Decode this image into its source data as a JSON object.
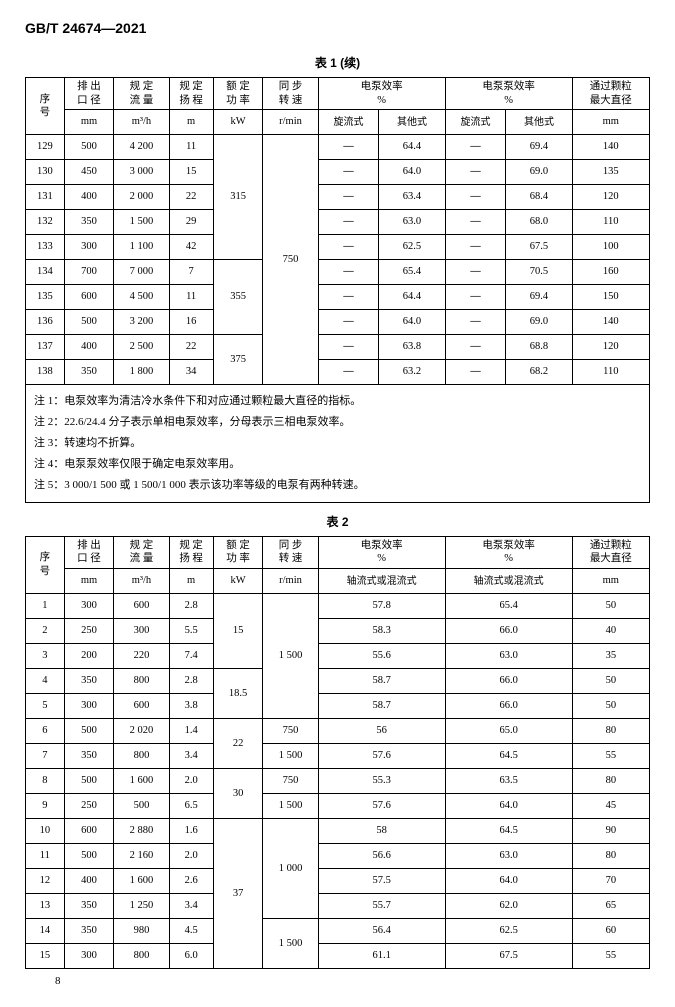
{
  "docId": "GB/T 24674—2021",
  "pageNumber": "8",
  "table1": {
    "title": "表 1 (续)",
    "headers": {
      "seq": "序<br>号",
      "dia": "排 出<br>口 径",
      "diaUnit": "mm",
      "flow": "规 定<br>流 量",
      "flowUnit": "m³/h",
      "head": "规 定<br>扬 程",
      "headUnit": "m",
      "power": "额 定<br>功 率",
      "powerUnit": "kW",
      "speed": "同 步<br>转 速",
      "speedUnit": "r/min",
      "pumpEff": "电泵效率",
      "pumpEffUnit": "%",
      "pumpEffA": "旋流式",
      "pumpEffB": "其他式",
      "unitEff": "电泵泵效率",
      "unitEffUnit": "%",
      "unitEffA": "旋流式",
      "unitEffB": "其他式",
      "particle": "通过颗粒<br>最大直径",
      "particleUnit": "mm"
    },
    "rows": [
      {
        "seq": "129",
        "dia": "500",
        "flow": "4 200",
        "head": "11",
        "power": "315",
        "speed": "",
        "pA": "—",
        "pB": "64.4",
        "uA": "—",
        "uB": "69.4",
        "part": "140",
        "powerSpan": 5
      },
      {
        "seq": "130",
        "dia": "450",
        "flow": "3 000",
        "head": "15",
        "power": "",
        "speed": "",
        "pA": "—",
        "pB": "64.0",
        "uA": "—",
        "uB": "69.0",
        "part": "135"
      },
      {
        "seq": "131",
        "dia": "400",
        "flow": "2 000",
        "head": "22",
        "power": "",
        "speed": "",
        "pA": "—",
        "pB": "63.4",
        "uA": "—",
        "uB": "68.4",
        "part": "120"
      },
      {
        "seq": "132",
        "dia": "350",
        "flow": "1 500",
        "head": "29",
        "power": "",
        "speed": "",
        "pA": "—",
        "pB": "63.0",
        "uA": "—",
        "uB": "68.0",
        "part": "110"
      },
      {
        "seq": "133",
        "dia": "300",
        "flow": "1 100",
        "head": "42",
        "power": "",
        "speed": "750",
        "pA": "—",
        "pB": "62.5",
        "uA": "—",
        "uB": "67.5",
        "part": "100",
        "speedSpan": 6
      },
      {
        "seq": "134",
        "dia": "700",
        "flow": "7 000",
        "head": "7",
        "power": "355",
        "speed": "",
        "pA": "—",
        "pB": "65.4",
        "uA": "—",
        "uB": "70.5",
        "part": "160",
        "powerSpan": 3
      },
      {
        "seq": "135",
        "dia": "600",
        "flow": "4 500",
        "head": "11",
        "power": "",
        "speed": "",
        "pA": "—",
        "pB": "64.4",
        "uA": "—",
        "uB": "69.4",
        "part": "150"
      },
      {
        "seq": "136",
        "dia": "500",
        "flow": "3 200",
        "head": "16",
        "power": "",
        "speed": "",
        "pA": "—",
        "pB": "64.0",
        "uA": "—",
        "uB": "69.0",
        "part": "140"
      },
      {
        "seq": "137",
        "dia": "400",
        "flow": "2 500",
        "head": "22",
        "power": "375",
        "speed": "",
        "pA": "—",
        "pB": "63.8",
        "uA": "—",
        "uB": "68.8",
        "part": "120",
        "powerSpan": 2
      },
      {
        "seq": "138",
        "dia": "350",
        "flow": "1 800",
        "head": "34",
        "power": "",
        "speed": "",
        "pA": "—",
        "pB": "63.2",
        "uA": "—",
        "uB": "68.2",
        "part": "110"
      }
    ],
    "notes": [
      "注 1：电泵效率为清洁冷水条件下和对应通过颗粒最大直径的指标。",
      "注 2：22.6/24.4 分子表示单相电泵效率，分母表示三相电泵效率。",
      "注 3：转速均不折算。",
      "注 4：电泵泵效率仅限于确定电泵效率用。",
      "注 5：3 000/1 500 或 1 500/1 000 表示该功率等级的电泵有两种转速。"
    ]
  },
  "table2": {
    "title": "表 2",
    "headers": {
      "seq": "序<br>号",
      "dia": "排 出<br>口 径",
      "diaUnit": "mm",
      "flow": "规 定<br>流 量",
      "flowUnit": "m³/h",
      "head": "规 定<br>扬 程",
      "headUnit": "m",
      "power": "额 定<br>功 率",
      "powerUnit": "kW",
      "speed": "同 步<br>转 速",
      "speedUnit": "r/min",
      "pumpEff": "电泵效率",
      "pumpEffUnit": "%",
      "pumpEffSub": "轴流式或混流式",
      "unitEff": "电泵泵效率",
      "unitEffUnit": "%",
      "unitEffSub": "轴流式或混流式",
      "particle": "通过颗粒<br>最大直径",
      "particleUnit": "mm"
    },
    "rows": [
      {
        "seq": "1",
        "dia": "300",
        "flow": "600",
        "head": "2.8",
        "power": "15",
        "speed": "1 500",
        "p": "57.8",
        "u": "65.4",
        "part": "50",
        "powerSpan": 3,
        "speedSpan": 5
      },
      {
        "seq": "2",
        "dia": "250",
        "flow": "300",
        "head": "5.5",
        "power": "",
        "speed": "",
        "p": "58.3",
        "u": "66.0",
        "part": "40"
      },
      {
        "seq": "3",
        "dia": "200",
        "flow": "220",
        "head": "7.4",
        "power": "",
        "speed": "",
        "p": "55.6",
        "u": "63.0",
        "part": "35"
      },
      {
        "seq": "4",
        "dia": "350",
        "flow": "800",
        "head": "2.8",
        "power": "18.5",
        "speed": "",
        "p": "58.7",
        "u": "66.0",
        "part": "50",
        "powerSpan": 2
      },
      {
        "seq": "5",
        "dia": "300",
        "flow": "600",
        "head": "3.8",
        "power": "",
        "speed": "",
        "p": "58.7",
        "u": "66.0",
        "part": "50"
      },
      {
        "seq": "6",
        "dia": "500",
        "flow": "2 020",
        "head": "1.4",
        "power": "22",
        "speed": "750",
        "p": "56",
        "u": "65.0",
        "part": "80",
        "powerSpan": 2
      },
      {
        "seq": "7",
        "dia": "350",
        "flow": "800",
        "head": "3.4",
        "power": "",
        "speed": "1 500",
        "p": "57.6",
        "u": "64.5",
        "part": "55"
      },
      {
        "seq": "8",
        "dia": "500",
        "flow": "1 600",
        "head": "2.0",
        "power": "30",
        "speed": "750",
        "p": "55.3",
        "u": "63.5",
        "part": "80",
        "powerSpan": 2
      },
      {
        "seq": "9",
        "dia": "250",
        "flow": "500",
        "head": "6.5",
        "power": "",
        "speed": "1 500",
        "p": "57.6",
        "u": "64.0",
        "part": "45"
      },
      {
        "seq": "10",
        "dia": "600",
        "flow": "2 880",
        "head": "1.6",
        "power": "37",
        "speed": "1 000",
        "p": "58",
        "u": "64.5",
        "part": "90",
        "powerSpan": 6,
        "speedSpan": 4
      },
      {
        "seq": "11",
        "dia": "500",
        "flow": "2 160",
        "head": "2.0",
        "power": "",
        "speed": "",
        "p": "56.6",
        "u": "63.0",
        "part": "80"
      },
      {
        "seq": "12",
        "dia": "400",
        "flow": "1 600",
        "head": "2.6",
        "power": "",
        "speed": "",
        "p": "57.5",
        "u": "64.0",
        "part": "70"
      },
      {
        "seq": "13",
        "dia": "350",
        "flow": "1 250",
        "head": "3.4",
        "power": "",
        "speed": "",
        "p": "55.7",
        "u": "62.0",
        "part": "65"
      },
      {
        "seq": "14",
        "dia": "350",
        "flow": "980",
        "head": "4.5",
        "power": "",
        "speed": "1 500",
        "p": "56.4",
        "u": "62.5",
        "part": "60",
        "speedSpan": 2
      },
      {
        "seq": "15",
        "dia": "300",
        "flow": "800",
        "head": "6.0",
        "power": "",
        "speed": "",
        "p": "61.1",
        "u": "67.5",
        "part": "55"
      }
    ]
  }
}
